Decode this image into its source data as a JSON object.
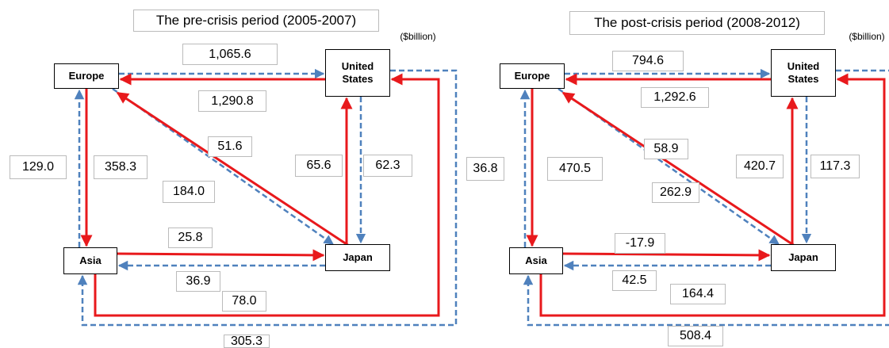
{
  "panels": [
    {
      "title": "The pre-crisis period (2005-2007)",
      "unit": "($billion)",
      "nodes": [
        {
          "label": "Europe"
        },
        {
          "label": "United States"
        },
        {
          "label": "Asia"
        },
        {
          "label": "Japan"
        }
      ],
      "flows": [
        {
          "label": "1,065.6"
        },
        {
          "label": "1,290.8"
        },
        {
          "label": "129.0"
        },
        {
          "label": "358.3"
        },
        {
          "label": "51.6"
        },
        {
          "label": "184.0"
        },
        {
          "label": "65.6"
        },
        {
          "label": "62.3"
        },
        {
          "label": "25.8"
        },
        {
          "label": "36.9"
        },
        {
          "label": "78.0"
        },
        {
          "label": "305.3"
        }
      ]
    },
    {
      "title": "The post-crisis period (2008-2012)",
      "unit": "($billion)",
      "nodes": [
        {
          "label": "Europe"
        },
        {
          "label": "United States"
        },
        {
          "label": "Asia"
        },
        {
          "label": "Japan"
        }
      ],
      "flows": [
        {
          "label": "794.6"
        },
        {
          "label": "1,292.6"
        },
        {
          "label": "36.8"
        },
        {
          "label": "470.5"
        },
        {
          "label": "58.9"
        },
        {
          "label": "262.9"
        },
        {
          "label": "420.7"
        },
        {
          "label": "117.3"
        },
        {
          "label": "-17.9"
        },
        {
          "label": "42.5"
        },
        {
          "label": "164.4"
        },
        {
          "label": "508.4"
        }
      ]
    }
  ]
}
